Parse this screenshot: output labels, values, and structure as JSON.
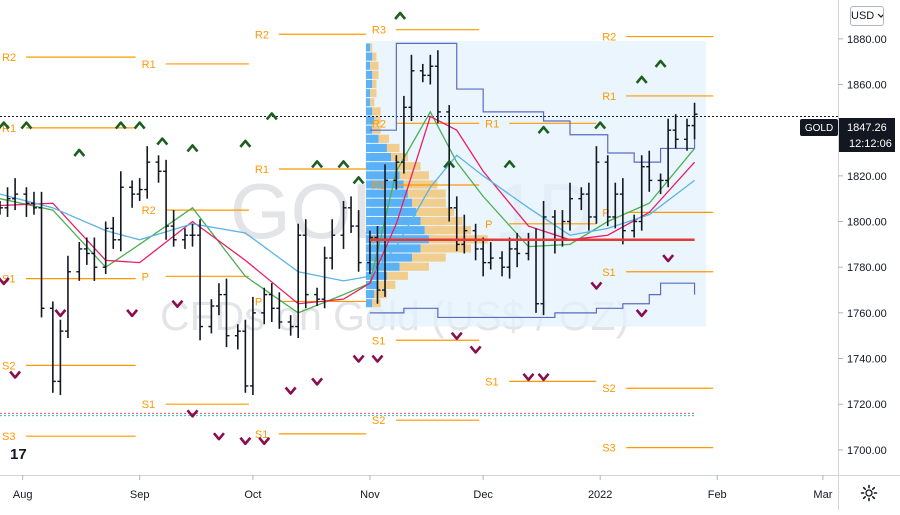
{
  "symbol": "GOLD",
  "currency": {
    "selected": "USD"
  },
  "watermark": {
    "line1": "GOLD, 1D",
    "line2": "CFDs on Gold (US$ / OZ)"
  },
  "colors": {
    "bar": "#131722",
    "pivot": "#ff9800",
    "sma_fast": "#4caf50",
    "sma_mid": "#e91e63",
    "sma_slow": "#5ab4e5",
    "poc": "#e53935",
    "volume_up": "#42a5f5",
    "volume_down": "#f2c67a",
    "arrow_up": "#1b5e20",
    "arrow_down": "#880e4f",
    "envelope": "#5c6bc0"
  },
  "price_label": {
    "value": "1847.26",
    "timer": "12:12:06"
  },
  "icons": {
    "settings": "gear-icon",
    "currency_dropdown": "chevron-down-icon"
  },
  "chart_data": {
    "type": "line",
    "title": "",
    "x_axis_labels": [
      "Aug",
      "Sep",
      "Oct",
      "Nov",
      "Dec",
      "2022",
      "Feb",
      "Mar"
    ],
    "x_axis_positions": [
      "2021-08-01",
      "2021-09-01",
      "2021-10-01",
      "2021-11-01",
      "2021-12-01",
      "2022-01-01",
      "2022-02-01",
      "2022-03-01"
    ],
    "y_axis_labels": [
      "1880.00",
      "1860.00",
      "1840.00",
      "1820.00",
      "1800.00",
      "1780.00",
      "1760.00",
      "1740.00",
      "1720.00",
      "1700.00"
    ],
    "ylim": [
      1689,
      1897
    ],
    "xlim": [
      "2021-07-26",
      "2022-03-05"
    ],
    "grid": false,
    "current_price": 1847.26,
    "closes": [
      [
        "2021-07-26",
        1806
      ],
      [
        "2021-07-28",
        1810
      ],
      [
        "2021-07-30",
        1812
      ],
      [
        "2021-08-02",
        1808
      ],
      [
        "2021-08-04",
        1806
      ],
      [
        "2021-08-06",
        1762
      ],
      [
        "2021-08-09",
        1730
      ],
      [
        "2021-08-11",
        1752
      ],
      [
        "2021-08-13",
        1778
      ],
      [
        "2021-08-16",
        1788
      ],
      [
        "2021-08-18",
        1786
      ],
      [
        "2021-08-20",
        1780
      ],
      [
        "2021-08-23",
        1797
      ],
      [
        "2021-08-25",
        1792
      ],
      [
        "2021-08-27",
        1815
      ],
      [
        "2021-08-30",
        1812
      ],
      [
        "2021-09-01",
        1814
      ],
      [
        "2021-09-03",
        1826
      ],
      [
        "2021-09-06",
        1822
      ],
      [
        "2021-09-08",
        1798
      ],
      [
        "2021-09-10",
        1792
      ],
      [
        "2021-09-13",
        1794
      ],
      [
        "2021-09-15",
        1794
      ],
      [
        "2021-09-17",
        1754
      ],
      [
        "2021-09-20",
        1763
      ],
      [
        "2021-09-22",
        1768
      ],
      [
        "2021-09-24",
        1750
      ],
      [
        "2021-09-27",
        1752
      ],
      [
        "2021-09-29",
        1728
      ],
      [
        "2021-10-01",
        1760
      ],
      [
        "2021-10-04",
        1768
      ],
      [
        "2021-10-06",
        1762
      ],
      [
        "2021-10-08",
        1756
      ],
      [
        "2021-10-11",
        1754
      ],
      [
        "2021-10-13",
        1794
      ],
      [
        "2021-10-15",
        1768
      ],
      [
        "2021-10-18",
        1766
      ],
      [
        "2021-10-20",
        1784
      ],
      [
        "2021-10-22",
        1794
      ],
      [
        "2021-10-25",
        1806
      ],
      [
        "2021-10-27",
        1798
      ],
      [
        "2021-10-29",
        1782
      ],
      [
        "2021-11-01",
        1793
      ],
      [
        "2021-11-03",
        1770
      ],
      [
        "2021-11-05",
        1818
      ],
      [
        "2021-11-08",
        1826
      ],
      [
        "2021-11-10",
        1850
      ],
      [
        "2021-11-12",
        1866
      ],
      [
        "2021-11-15",
        1864
      ],
      [
        "2021-11-17",
        1868
      ],
      [
        "2021-11-19",
        1848
      ],
      [
        "2021-11-22",
        1806
      ],
      [
        "2021-11-24",
        1790
      ],
      [
        "2021-11-26",
        1796
      ],
      [
        "2021-11-29",
        1788
      ],
      [
        "2021-12-01",
        1782
      ],
      [
        "2021-12-03",
        1784
      ],
      [
        "2021-12-06",
        1780
      ],
      [
        "2021-12-08",
        1788
      ],
      [
        "2021-12-10",
        1786
      ],
      [
        "2021-12-13",
        1792
      ],
      [
        "2021-12-15",
        1764
      ],
      [
        "2021-12-17",
        1802
      ],
      [
        "2021-12-20",
        1792
      ],
      [
        "2021-12-22",
        1800
      ],
      [
        "2021-12-24",
        1810
      ],
      [
        "2021-12-27",
        1812
      ],
      [
        "2021-12-29",
        1802
      ],
      [
        "2021-12-31",
        1826
      ],
      [
        "2022-01-03",
        1802
      ],
      [
        "2022-01-05",
        1812
      ],
      [
        "2022-01-07",
        1796
      ],
      [
        "2022-01-10",
        1800
      ],
      [
        "2022-01-12",
        1824
      ],
      [
        "2022-01-14",
        1818
      ],
      [
        "2022-01-17",
        1818
      ],
      [
        "2022-01-19",
        1840
      ],
      [
        "2022-01-21",
        1836
      ],
      [
        "2022-01-24",
        1842
      ],
      [
        "2022-01-26",
        1847
      ]
    ],
    "series": [
      {
        "values": [
          [
            "2021-07-26",
            1810
          ],
          [
            "2021-08-09",
            1805
          ],
          [
            "2021-08-23",
            1780
          ],
          [
            "2021-09-01",
            1790
          ],
          [
            "2021-09-15",
            1806
          ],
          [
            "2021-09-29",
            1776
          ],
          [
            "2021-10-13",
            1760
          ],
          [
            "2021-10-25",
            1768
          ],
          [
            "2021-11-01",
            1773
          ],
          [
            "2021-11-08",
            1822
          ],
          [
            "2021-11-17",
            1848
          ],
          [
            "2021-11-24",
            1826
          ],
          [
            "2021-12-01",
            1811
          ],
          [
            "2021-12-13",
            1789
          ],
          [
            "2021-12-24",
            1790
          ],
          [
            "2022-01-03",
            1800
          ],
          [
            "2022-01-14",
            1808
          ],
          [
            "2022-01-26",
            1832
          ]
        ]
      },
      {
        "values": [
          [
            "2021-07-26",
            1807
          ],
          [
            "2021-08-09",
            1808
          ],
          [
            "2021-08-23",
            1783
          ],
          [
            "2021-09-01",
            1782
          ],
          [
            "2021-09-15",
            1800
          ],
          [
            "2021-09-29",
            1783
          ],
          [
            "2021-10-13",
            1764
          ],
          [
            "2021-10-25",
            1766
          ],
          [
            "2021-11-01",
            1773
          ],
          [
            "2021-11-08",
            1799
          ],
          [
            "2021-11-17",
            1846
          ],
          [
            "2021-11-24",
            1840
          ],
          [
            "2021-12-01",
            1822
          ],
          [
            "2021-12-13",
            1798
          ],
          [
            "2021-12-24",
            1792
          ],
          [
            "2022-01-03",
            1794
          ],
          [
            "2022-01-14",
            1804
          ],
          [
            "2022-01-26",
            1826
          ]
        ]
      },
      {
        "values": [
          [
            "2021-07-26",
            1812
          ],
          [
            "2021-08-09",
            1806
          ],
          [
            "2021-08-23",
            1796
          ],
          [
            "2021-09-01",
            1792
          ],
          [
            "2021-09-15",
            1799
          ],
          [
            "2021-09-29",
            1795
          ],
          [
            "2021-10-13",
            1778
          ],
          [
            "2021-10-25",
            1774
          ],
          [
            "2021-11-01",
            1776
          ],
          [
            "2021-11-08",
            1789
          ],
          [
            "2021-11-17",
            1815
          ],
          [
            "2021-11-24",
            1829
          ],
          [
            "2021-12-01",
            1820
          ],
          [
            "2021-12-13",
            1806
          ],
          [
            "2021-12-24",
            1794
          ],
          [
            "2022-01-03",
            1797
          ],
          [
            "2022-01-14",
            1803
          ],
          [
            "2022-01-26",
            1818
          ]
        ]
      }
    ],
    "pivot_levels": [
      {
        "label": "R2",
        "value": 1872,
        "from": "2021-07-26",
        "to": "2021-09-01"
      },
      {
        "label": "R1",
        "value": 1841,
        "from": "2021-07-26",
        "to": "2021-09-01"
      },
      {
        "label": "S1",
        "value": 1775,
        "from": "2021-07-26",
        "to": "2021-09-01"
      },
      {
        "label": "S2",
        "value": 1737,
        "from": "2021-07-26",
        "to": "2021-09-01"
      },
      {
        "label": "S3",
        "value": 1706,
        "from": "2021-07-26",
        "to": "2021-09-01"
      },
      {
        "label": "R1",
        "value": 1869,
        "from": "2021-09-01",
        "to": "2021-10-01"
      },
      {
        "label": "R2",
        "value": 1805,
        "from": "2021-09-01",
        "to": "2021-10-01"
      },
      {
        "label": "P",
        "value": 1776,
        "from": "2021-09-01",
        "to": "2021-10-01"
      },
      {
        "label": "S1",
        "value": 1720,
        "from": "2021-09-01",
        "to": "2021-10-01"
      },
      {
        "label": "R2",
        "value": 1882,
        "from": "2021-10-01",
        "to": "2021-11-01"
      },
      {
        "label": "R1",
        "value": 1823,
        "from": "2021-10-01",
        "to": "2021-11-01"
      },
      {
        "label": "P",
        "value": 1765,
        "from": "2021-10-01",
        "to": "2021-11-01"
      },
      {
        "label": "S1",
        "value": 1707,
        "from": "2021-10-01",
        "to": "2021-11-01"
      },
      {
        "label": "R3",
        "value": 1884,
        "from": "2021-11-01",
        "to": "2021-12-01"
      },
      {
        "label": "R2",
        "value": 1843,
        "from": "2021-11-01",
        "to": "2021-12-01"
      },
      {
        "label": "R1",
        "value": 1816,
        "from": "2021-11-01",
        "to": "2021-12-01"
      },
      {
        "label": "P",
        "value": 1792,
        "from": "2021-11-01",
        "to": "2021-12-01"
      },
      {
        "label": "S1",
        "value": 1748,
        "from": "2021-11-01",
        "to": "2021-12-01"
      },
      {
        "label": "S2",
        "value": 1713,
        "from": "2021-11-01",
        "to": "2021-12-01"
      },
      {
        "label": "R1",
        "value": 1843,
        "from": "2021-12-01",
        "to": "2022-01-01"
      },
      {
        "label": "P",
        "value": 1799,
        "from": "2021-12-01",
        "to": "2022-01-01"
      },
      {
        "label": "S1",
        "value": 1730,
        "from": "2021-12-01",
        "to": "2022-01-01"
      },
      {
        "label": "R2",
        "value": 1881,
        "from": "2022-01-01",
        "to": "2022-02-01"
      },
      {
        "label": "R1",
        "value": 1855,
        "from": "2022-01-01",
        "to": "2022-02-01"
      },
      {
        "label": "P",
        "value": 1804,
        "from": "2022-01-01",
        "to": "2022-02-01"
      },
      {
        "label": "S1",
        "value": 1778,
        "from": "2022-01-01",
        "to": "2022-02-01"
      },
      {
        "label": "S2",
        "value": 1727,
        "from": "2022-01-01",
        "to": "2022-02-01"
      },
      {
        "label": "S3",
        "value": 1701,
        "from": "2022-01-01",
        "to": "2022-02-01"
      }
    ],
    "poc_line": {
      "value": 1792,
      "from": "2021-11-01",
      "to": "2022-01-26"
    },
    "dashed_lines": [
      {
        "value": 1846,
        "from": "2021-07-26",
        "to": "2022-03-05",
        "color": "#131722"
      },
      {
        "value": 1716,
        "from": "2021-07-26",
        "to": "2022-01-26",
        "color": "#ef5350"
      },
      {
        "value": 1715,
        "from": "2021-07-26",
        "to": "2022-01-26",
        "color": "#26c6da"
      }
    ],
    "volume_profile": [
      {
        "price": 1876,
        "up": 2,
        "down": 1
      },
      {
        "price": 1872,
        "up": 3,
        "down": 2
      },
      {
        "price": 1868,
        "up": 2,
        "down": 4
      },
      {
        "price": 1864,
        "up": 3,
        "down": 3
      },
      {
        "price": 1860,
        "up": 3,
        "down": 2
      },
      {
        "price": 1856,
        "up": 2,
        "down": 3
      },
      {
        "price": 1852,
        "up": 2,
        "down": 2
      },
      {
        "price": 1848,
        "up": 3,
        "down": 4
      },
      {
        "price": 1844,
        "up": 4,
        "down": 3
      },
      {
        "price": 1840,
        "up": 3,
        "down": 4
      },
      {
        "price": 1836,
        "up": 6,
        "down": 5
      },
      {
        "price": 1832,
        "up": 10,
        "down": 6
      },
      {
        "price": 1828,
        "up": 12,
        "down": 8
      },
      {
        "price": 1824,
        "up": 14,
        "down": 12
      },
      {
        "price": 1820,
        "up": 16,
        "down": 14
      },
      {
        "price": 1816,
        "up": 18,
        "down": 16
      },
      {
        "price": 1812,
        "up": 20,
        "down": 18
      },
      {
        "price": 1808,
        "up": 22,
        "down": 16
      },
      {
        "price": 1804,
        "up": 24,
        "down": 18
      },
      {
        "price": 1800,
        "up": 26,
        "down": 20
      },
      {
        "price": 1796,
        "up": 28,
        "down": 22
      },
      {
        "price": 1792,
        "up": 30,
        "down": 28
      },
      {
        "price": 1788,
        "up": 26,
        "down": 24
      },
      {
        "price": 1784,
        "up": 22,
        "down": 16
      },
      {
        "price": 1780,
        "up": 16,
        "down": 14
      },
      {
        "price": 1776,
        "up": 10,
        "down": 10
      },
      {
        "price": 1772,
        "up": 6,
        "down": 8
      },
      {
        "price": 1768,
        "up": 4,
        "down": 6
      },
      {
        "price": 1764,
        "up": 3,
        "down": 4
      }
    ],
    "envelope": {
      "upper": [
        [
          "2021-11-01",
          1840
        ],
        [
          "2021-11-08",
          1878
        ],
        [
          "2021-11-17",
          1878
        ],
        [
          "2021-11-24",
          1858
        ],
        [
          "2021-12-01",
          1848
        ],
        [
          "2021-12-08",
          1848
        ],
        [
          "2021-12-17",
          1844
        ],
        [
          "2021-12-24",
          1838
        ],
        [
          "2022-01-03",
          1830
        ],
        [
          "2022-01-10",
          1826
        ],
        [
          "2022-01-17",
          1832
        ],
        [
          "2022-01-26",
          1846
        ]
      ],
      "lower": [
        [
          "2021-11-01",
          1760
        ],
        [
          "2021-11-10",
          1762
        ],
        [
          "2021-11-19",
          1758
        ],
        [
          "2021-11-26",
          1758
        ],
        [
          "2021-12-06",
          1758
        ],
        [
          "2021-12-13",
          1758
        ],
        [
          "2021-12-20",
          1760
        ],
        [
          "2021-12-31",
          1762
        ],
        [
          "2022-01-07",
          1764
        ],
        [
          "2022-01-14",
          1768
        ],
        [
          "2022-01-17",
          1773
        ],
        [
          "2022-01-26",
          1768
        ]
      ]
    },
    "shade_range": {
      "from": "2021-11-01",
      "to": "2022-01-29",
      "top": 1879,
      "bottom": 1754
    },
    "signals_up": [
      [
        "2021-07-27",
        1842
      ],
      [
        "2021-08-02",
        1842
      ],
      [
        "2021-08-16",
        1830
      ],
      [
        "2021-08-27",
        1842
      ],
      [
        "2021-09-01",
        1842
      ],
      [
        "2021-09-07",
        1835
      ],
      [
        "2021-09-15",
        1832
      ],
      [
        "2021-09-29",
        1834
      ],
      [
        "2021-10-06",
        1846
      ],
      [
        "2021-10-18",
        1825
      ],
      [
        "2021-10-25",
        1825
      ],
      [
        "2021-10-29",
        1818
      ],
      [
        "2021-11-09",
        1890
      ],
      [
        "2021-11-22",
        1825
      ],
      [
        "2021-12-08",
        1825
      ],
      [
        "2021-12-17",
        1840
      ],
      [
        "2022-01-01",
        1842
      ],
      [
        "2022-01-12",
        1862
      ],
      [
        "2022-01-17",
        1869
      ]
    ],
    "signals_down": [
      [
        "2021-07-27",
        1774
      ],
      [
        "2021-07-30",
        1733
      ],
      [
        "2021-08-11",
        1760
      ],
      [
        "2021-08-30",
        1760
      ],
      [
        "2021-09-11",
        1764
      ],
      [
        "2021-09-15",
        1716
      ],
      [
        "2021-09-22",
        1706
      ],
      [
        "2021-09-29",
        1704
      ],
      [
        "2021-10-04",
        1704
      ],
      [
        "2021-10-11",
        1726
      ],
      [
        "2021-10-18",
        1730
      ],
      [
        "2021-10-29",
        1740
      ],
      [
        "2021-11-03",
        1740
      ],
      [
        "2021-11-24",
        1750
      ],
      [
        "2021-11-29",
        1744
      ],
      [
        "2021-12-13",
        1732
      ],
      [
        "2021-12-17",
        1732
      ],
      [
        "2021-12-31",
        1772
      ],
      [
        "2022-01-12",
        1760
      ],
      [
        "2022-01-19",
        1784
      ]
    ]
  }
}
